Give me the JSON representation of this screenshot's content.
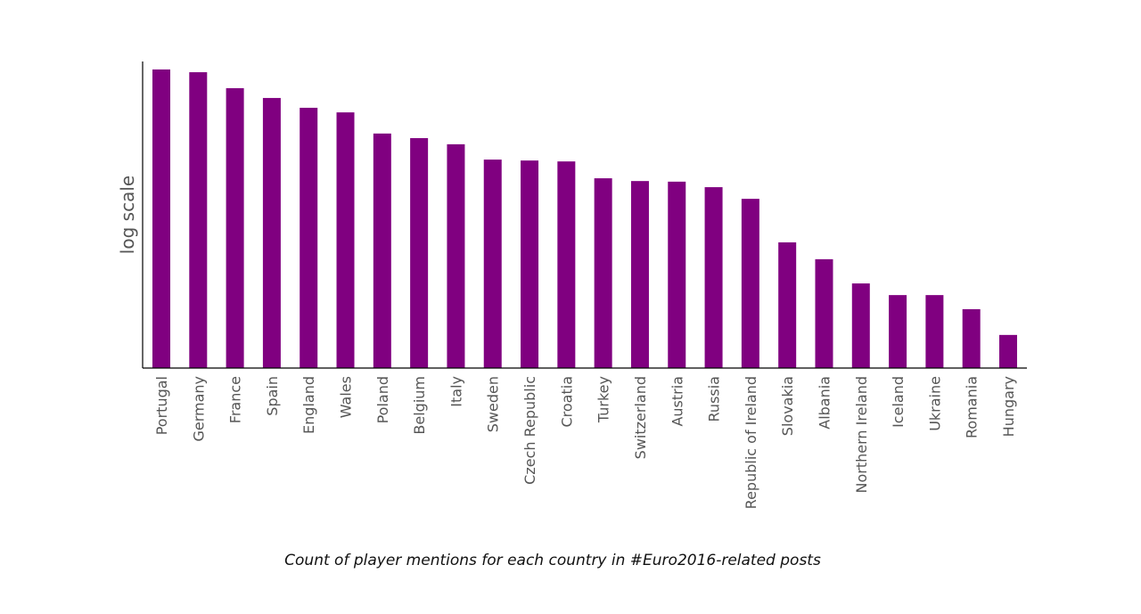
{
  "chart_data": {
    "type": "bar",
    "title": "",
    "caption": "Count of player mentions for each country in #Euro2016-related posts",
    "xlabel": "",
    "ylabel": "log scale",
    "y_scale": "log",
    "value_units": "relative bar height on log axis (fraction of axis height, 0-1); no tick labels shown",
    "ylim": [
      0,
      1
    ],
    "grid": false,
    "bar_color": "#800080",
    "categories": [
      "Portugal",
      "Germany",
      "France",
      "Spain",
      "England",
      "Wales",
      "Poland",
      "Belgium",
      "Italy",
      "Sweden",
      "Czech Republic",
      "Croatia",
      "Turkey",
      "Switzerland",
      "Austria",
      "Russia",
      "Republic of Ireland",
      "Slovakia",
      "Albania",
      "Northern Ireland",
      "Iceland",
      "Ukraine",
      "Romania",
      "Hungary"
    ],
    "values": [
      0.974,
      0.965,
      0.913,
      0.881,
      0.849,
      0.834,
      0.765,
      0.75,
      0.73,
      0.68,
      0.677,
      0.674,
      0.619,
      0.61,
      0.608,
      0.59,
      0.552,
      0.41,
      0.355,
      0.276,
      0.238,
      0.238,
      0.192,
      0.108
    ]
  }
}
